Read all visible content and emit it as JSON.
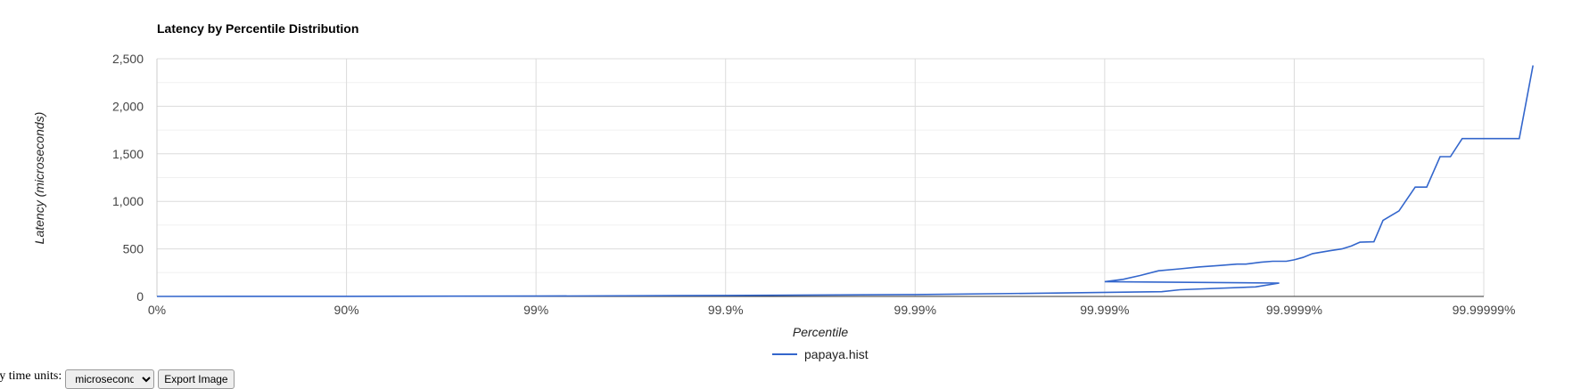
{
  "chart_data": {
    "type": "line",
    "title": "Latency by Percentile Distribution",
    "xlabel": "Percentile",
    "ylabel": "Latency (microseconds)",
    "x_scale": "log(1/(1-p))",
    "x_ticks": [
      "0%",
      "90%",
      "99%",
      "99.9%",
      "99.99%",
      "99.999%",
      "99.9999%",
      "99.99999%"
    ],
    "y_ticks": [
      "0",
      "500",
      "1,000",
      "1,500",
      "2,000",
      "2,500"
    ],
    "ylim": [
      0,
      2500
    ],
    "grid": true,
    "legend_position": "bottom",
    "series": [
      {
        "name": "papaya.hist",
        "color": "#3366cc",
        "points": [
          [
            "0%",
            0
          ],
          [
            "90%",
            1
          ],
          [
            "99%",
            4
          ],
          [
            "99.9%",
            10
          ],
          [
            "99.99%",
            20
          ],
          [
            "99.998%",
            35
          ],
          [
            "99.9995%",
            50
          ],
          [
            "99.9996%",
            70
          ],
          [
            "99.99984%",
            100
          ],
          [
            "99.99988%",
            140
          ],
          [
            "99.999%",
            155
          ],
          [
            "99.9992%",
            180
          ],
          [
            "99.99935%",
            220
          ],
          [
            "99.99948%",
            270
          ],
          [
            "99.9996%",
            290
          ],
          [
            "99.99968%",
            310
          ],
          [
            "99.99975%",
            325
          ],
          [
            "99.9998%",
            340
          ],
          [
            "99.99982%",
            340
          ],
          [
            "99.99985%",
            360
          ],
          [
            "99.99987%",
            370
          ],
          [
            "99.99989%",
            370
          ],
          [
            "99.9999%",
            385
          ],
          [
            "99.99991%",
            410
          ],
          [
            "99.99992%",
            450
          ],
          [
            "99.999935%",
            480
          ],
          [
            "99.999944%",
            500
          ],
          [
            "99.99995%",
            530
          ],
          [
            "99.999955%",
            570
          ],
          [
            "99.999962%",
            575
          ],
          [
            "99.999966%",
            800
          ],
          [
            "99.999972%",
            900
          ],
          [
            "99.999977%",
            1150
          ],
          [
            "99.99998%",
            1150
          ],
          [
            "99.999983%",
            1470
          ],
          [
            "99.999985%",
            1470
          ],
          [
            "99.999987%",
            1660
          ],
          [
            "99.999992%",
            1660
          ],
          [
            "99.9999935%",
            1660
          ],
          [
            "99.9999945%",
            2430
          ]
        ]
      }
    ]
  },
  "controls": {
    "label": "ncy time units:",
    "unit_select_value": "microseconds",
    "export_button_label": "Export Image"
  }
}
